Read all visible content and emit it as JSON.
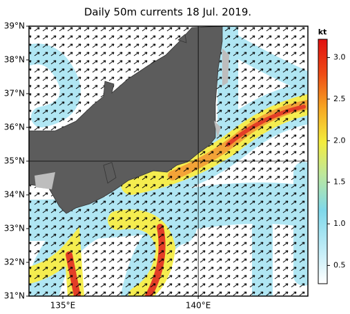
{
  "title": "Daily 50m currents 18 Jul. 2019.",
  "map": {
    "lat_range": [
      31,
      39
    ],
    "lon_range": [
      133.75,
      144.05
    ],
    "lat_ticks": [
      {
        "value": 39,
        "label": "39°N"
      },
      {
        "value": 38,
        "label": "38°N"
      },
      {
        "value": 37,
        "label": "37°N"
      },
      {
        "value": 36,
        "label": "36°N"
      },
      {
        "value": 35,
        "label": "35°N"
      },
      {
        "value": 34,
        "label": "34°N"
      },
      {
        "value": 33,
        "label": "33°N"
      },
      {
        "value": 32,
        "label": "32°N"
      },
      {
        "value": 31,
        "label": "31°N"
      }
    ],
    "lon_ticks": [
      {
        "value": 135,
        "label": "135°E"
      },
      {
        "value": 140,
        "label": "140°E"
      }
    ],
    "grid_lat": 35,
    "grid_lon": 140
  },
  "colorbar": {
    "unit": "kt",
    "lim": [
      0.28,
      3.22
    ],
    "ticks": [
      0.5,
      {
        "value": 1,
        "label": "1.0"
      },
      1.5,
      {
        "value": 2,
        "label": "2.0"
      },
      2.5,
      {
        "value": 3,
        "label": "3.0"
      }
    ]
  }
}
